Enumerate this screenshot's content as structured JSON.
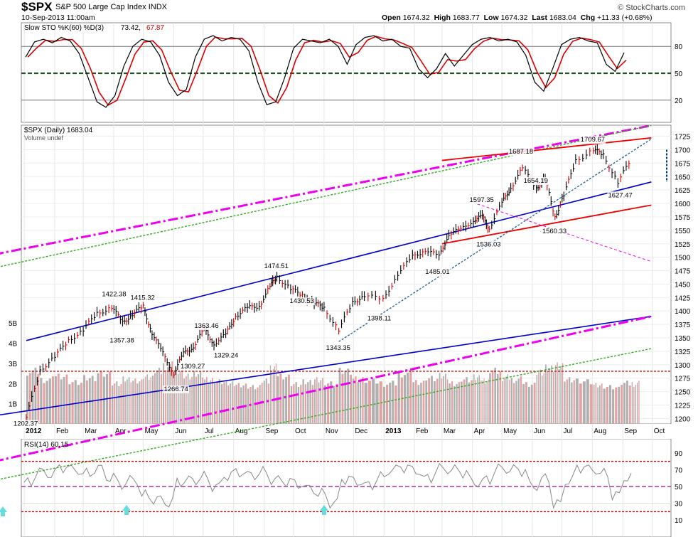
{
  "header": {
    "symbol": "$SPX",
    "name": "S&P 500 Large Cap Index",
    "exchange": "INDX",
    "datetime": "10-Sep-2013 11:00am",
    "brand": "© StockCharts.com",
    "quote": {
      "open_label": "Open",
      "open": "1674.32",
      "high_label": "High",
      "high": "1683.77",
      "low_label": "Low",
      "low": "1674.32",
      "last_label": "Last",
      "last": "1683.04",
      "chg_label": "Chg",
      "chg": "+11.33 (+0.68%)"
    }
  },
  "colors": {
    "price_up": "#000000",
    "price_down": "#cc0000",
    "volume": "#b0b0b0",
    "sto_k": "#000000",
    "sto_d": "#dd0000",
    "channel": "#0000cc",
    "magenta": "#ee00ee",
    "green": "#33aa22",
    "trend_red": "#ee0000",
    "dotted_blue": "#336699",
    "rsi": "#888888",
    "rsi_mid": "#aa33aa",
    "buy_arrow": "#66dddd"
  },
  "chart_data": [
    {
      "type": "line",
      "title": "Slow STO %K(60) %D(3)",
      "legend_text": "Slow STO %K(60) %D(3) 73.42, 67.87",
      "k_last": "73.42",
      "d_last": "67.87",
      "ylim": [
        0,
        100
      ],
      "y_ticks": [
        "80",
        "50",
        "20"
      ],
      "reference_lines": [
        80,
        50,
        20
      ],
      "series": [
        {
          "name": "%K",
          "values": [
            68,
            85,
            88,
            84,
            90,
            86,
            72,
            45,
            18,
            12,
            25,
            58,
            80,
            88,
            85,
            70,
            40,
            25,
            32,
            68,
            88,
            92,
            86,
            90,
            88,
            75,
            40,
            15,
            18,
            45,
            78,
            88,
            86,
            84,
            88,
            80,
            60,
            82,
            90,
            92,
            86,
            88,
            80,
            78,
            55,
            45,
            55,
            72,
            58,
            70,
            82,
            88,
            90,
            86,
            88,
            85,
            70,
            40,
            30,
            55,
            82,
            88,
            90,
            86,
            84,
            60,
            52,
            73
          ]
        }
      ]
    },
    {
      "type": "line",
      "title": "$SPX (Daily)",
      "legend_text": "$SPX (Daily) 1683.04",
      "volume_legend": "Volume undef",
      "x_ticks": [
        "2012",
        "Feb",
        "Mar",
        "Apr",
        "May",
        "Jun",
        "Jul",
        "Aug",
        "Sep",
        "Oct",
        "Nov",
        "Dec",
        "2013",
        "Feb",
        "Mar",
        "Apr",
        "May",
        "Jun",
        "Jul",
        "Aug",
        "Sep",
        "Oct"
      ],
      "y_ticks": [
        "1725",
        "1700",
        "1675",
        "1650",
        "1625",
        "1600",
        "1575",
        "1550",
        "1525",
        "1500",
        "1475",
        "1450",
        "1425",
        "1400",
        "1375",
        "1350",
        "1325",
        "1300",
        "1275",
        "1250",
        "1225",
        "1200"
      ],
      "ylim": [
        1190,
        1735
      ],
      "volume_ticks": [
        "5B",
        "4B",
        "3B",
        "2B",
        "1B"
      ],
      "volume_ylim": [
        0,
        5.5
      ],
      "x": [
        "2012-01-03",
        "2012-01-17",
        "2012-02-01",
        "2012-02-15",
        "2012-03-01",
        "2012-03-15",
        "2012-03-30",
        "2012-04-10",
        "2012-04-20",
        "2012-05-01",
        "2012-05-10",
        "2012-05-21",
        "2012-06-01",
        "2012-06-11",
        "2012-06-21",
        "2012-07-02",
        "2012-07-12",
        "2012-07-24",
        "2012-08-03",
        "2012-08-15",
        "2012-08-27",
        "2012-09-07",
        "2012-09-14",
        "2012-09-28",
        "2012-10-10",
        "2012-10-22",
        "2012-11-01",
        "2012-11-16",
        "2012-11-30",
        "2012-12-12",
        "2012-12-31",
        "2013-01-15",
        "2013-01-30",
        "2013-02-12",
        "2013-02-26",
        "2013-03-08",
        "2013-03-20",
        "2013-04-02",
        "2013-04-11",
        "2013-04-18",
        "2013-05-01",
        "2013-05-10",
        "2013-05-22",
        "2013-06-05",
        "2013-06-14",
        "2013-06-24",
        "2013-07-03",
        "2013-07-15",
        "2013-08-02",
        "2013-08-12",
        "2013-08-27",
        "2013-09-10"
      ],
      "series": [
        {
          "name": "$SPX",
          "values": [
            1202.37,
            1290,
            1315,
            1345,
            1365,
            1395,
            1408,
            1378,
            1395,
            1407,
            1360,
            1320,
            1285,
            1320,
            1335,
            1365,
            1340,
            1355,
            1392,
            1405,
            1410,
            1445,
            1465,
            1440,
            1430,
            1415,
            1405,
            1365,
            1415,
            1430,
            1420,
            1470,
            1500,
            1515,
            1500,
            1545,
            1550,
            1570,
            1575,
            1555,
            1600,
            1630,
            1665,
            1630,
            1645,
            1575,
            1615,
            1680,
            1700,
            1690,
            1640,
            1683.04
          ]
        }
      ],
      "volume": [
        2.6,
        2.2,
        2.4,
        2.1,
        2.3,
        2.5,
        2.0,
        2.2,
        2.1,
        2.3,
        2.6,
        2.9,
        2.7,
        2.4,
        2.5,
        2.2,
        2.1,
        2.0,
        1.9,
        1.8,
        2.1,
        2.8,
        2.4,
        2.0,
        2.1,
        2.2,
        2.0,
        2.6,
        2.2,
        2.1,
        2.0,
        2.5,
        2.1,
        2.3,
        2.4,
        2.0,
        2.2,
        2.3,
        2.1,
        2.6,
        2.3,
        2.2,
        2.0,
        2.6,
        2.8,
        2.9,
        2.2,
        2.1,
        1.9,
        1.8,
        2.0,
        2.0
      ],
      "annotations": [
        {
          "text": "1202.37",
          "x": "2012-01-03",
          "y": 1202.37
        },
        {
          "text": "1422.38",
          "x": "2012-04-02",
          "y": 1422.38
        },
        {
          "text": "1357.38",
          "x": "2012-04-10",
          "y": 1357.38
        },
        {
          "text": "1415.32",
          "x": "2012-05-01",
          "y": 1415.32
        },
        {
          "text": "1266.74",
          "x": "2012-06-04",
          "y": 1266.74
        },
        {
          "text": "1309.27",
          "x": "2012-06-21",
          "y": 1309.27
        },
        {
          "text": "1363.46",
          "x": "2012-07-05",
          "y": 1363.46
        },
        {
          "text": "1329.24",
          "x": "2012-07-25",
          "y": 1329.24
        },
        {
          "text": "1474.51",
          "x": "2012-09-14",
          "y": 1474.51
        },
        {
          "text": "1430.53",
          "x": "2012-10-10",
          "y": 1430.53
        },
        {
          "text": "1343.35",
          "x": "2012-11-16",
          "y": 1343.35
        },
        {
          "text": "1398.11",
          "x": "2012-12-28",
          "y": 1398.11
        },
        {
          "text": "1485.01",
          "x": "2013-02-25",
          "y": 1485.01
        },
        {
          "text": "1536.03",
          "x": "2013-04-18",
          "y": 1536.03
        },
        {
          "text": "1597.35",
          "x": "2013-04-11",
          "y": 1597.35
        },
        {
          "text": "1687.18",
          "x": "2013-05-21",
          "y": 1687.18
        },
        {
          "text": "1654.19",
          "x": "2013-06-05",
          "y": 1654.19
        },
        {
          "text": "1560.33",
          "x": "2013-06-24",
          "y": 1560.33
        },
        {
          "text": "1709.67",
          "x": "2013-08-02",
          "y": 1709.67
        },
        {
          "text": "1627.47",
          "x": "2013-08-30",
          "y": 1627.47
        }
      ],
      "trendlines": [
        {
          "kind": "channel",
          "color": "blue",
          "from": [
            "2012-01-03",
            1345
          ],
          "to": [
            "2013-09-30",
            1640
          ]
        },
        {
          "kind": "channel",
          "color": "blue",
          "from": [
            "2011-12-01",
            1205
          ],
          "to": [
            "2013-09-30",
            1390
          ]
        },
        {
          "kind": "dash-dot",
          "color": "magenta",
          "from": [
            "2011-12-01",
            1505
          ],
          "to": [
            "2013-09-30",
            1745
          ]
        },
        {
          "kind": "dash-dot",
          "color": "magenta",
          "from": [
            "2011-12-01",
            1120
          ],
          "to": [
            "2013-09-30",
            1390
          ]
        },
        {
          "kind": "dotted",
          "color": "green",
          "from": [
            "2011-12-01",
            1480
          ],
          "to": [
            "2013-09-30",
            1745
          ]
        },
        {
          "kind": "dotted",
          "color": "green",
          "from": [
            "2011-12-01",
            1085
          ],
          "to": [
            "2013-09-30",
            1330
          ]
        },
        {
          "kind": "solid",
          "color": "red",
          "from": [
            "2013-03-01",
            1680
          ],
          "to": [
            "2013-09-30",
            1722
          ]
        },
        {
          "kind": "solid",
          "color": "red",
          "from": [
            "2013-03-01",
            1525
          ],
          "to": [
            "2013-09-30",
            1597
          ]
        },
        {
          "kind": "dotted",
          "color": "blue",
          "from": [
            "2012-11-16",
            1343
          ],
          "to": [
            "2013-09-30",
            1720
          ]
        },
        {
          "kind": "thin-dashed",
          "color": "magenta",
          "from": [
            "2013-04-01",
            1602
          ],
          "to": [
            "2013-09-30",
            1492
          ]
        }
      ]
    },
    {
      "type": "line",
      "title": "RSI(14)",
      "legend_text": "RSI(14) 60.15",
      "last": "60.15",
      "ylim": [
        0,
        100
      ],
      "y_ticks": [
        "90",
        "70",
        "50",
        "30",
        "10"
      ],
      "reference_lines": [
        80,
        50,
        20
      ],
      "series": [
        {
          "name": "RSI(14)",
          "values": [
            55,
            68,
            64,
            72,
            70,
            66,
            72,
            60,
            52,
            58,
            40,
            35,
            30,
            55,
            58,
            62,
            50,
            62,
            66,
            64,
            68,
            58,
            55,
            52,
            48,
            42,
            30,
            58,
            55,
            52,
            62,
            70,
            72,
            68,
            60,
            72,
            70,
            66,
            54,
            58,
            72,
            70,
            68,
            50,
            60,
            30,
            56,
            72,
            70,
            66,
            40,
            60
          ]
        }
      ]
    }
  ]
}
